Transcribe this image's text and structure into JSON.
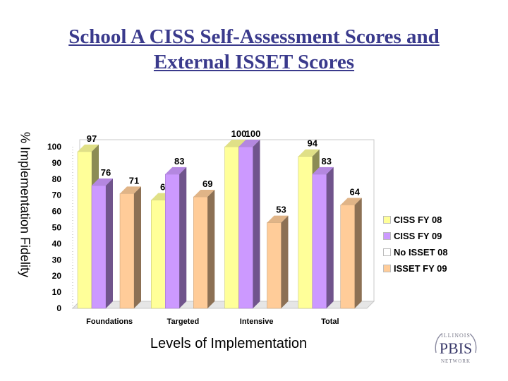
{
  "title_line1": "School A CISS Self-Assessment Scores and",
  "title_line2": "External ISSET Scores",
  "logo": {
    "top": "ILLINOIS",
    "middle": "PBIS",
    "bottom": "NETWORK"
  },
  "chart_data": {
    "type": "bar",
    "categories": [
      "Foundations",
      "Targeted",
      "Intensive",
      "Total"
    ],
    "series": [
      {
        "name": "CISS FY 08",
        "color": "#ffff99",
        "values": [
          97,
          67,
          100,
          94
        ]
      },
      {
        "name": "CISS FY 09",
        "color": "#cc99ff",
        "values": [
          76,
          83,
          100,
          83
        ]
      },
      {
        "name": "No ISSET 08",
        "color": "#ffffff",
        "values": [
          null,
          null,
          null,
          null
        ]
      },
      {
        "name": "ISSET FY 09",
        "color": "#ffcc99",
        "values": [
          71,
          69,
          53,
          64
        ]
      }
    ],
    "xlabel": "Levels of Implementation",
    "ylabel": "% Implementation Fidelity",
    "ylim": [
      0,
      100
    ],
    "yticks": [
      "0",
      "10",
      "20",
      "30",
      "40",
      "50",
      "60",
      "70",
      "80",
      "90",
      "100"
    ],
    "grid": false,
    "legend": "right",
    "style": "3d-columns"
  }
}
